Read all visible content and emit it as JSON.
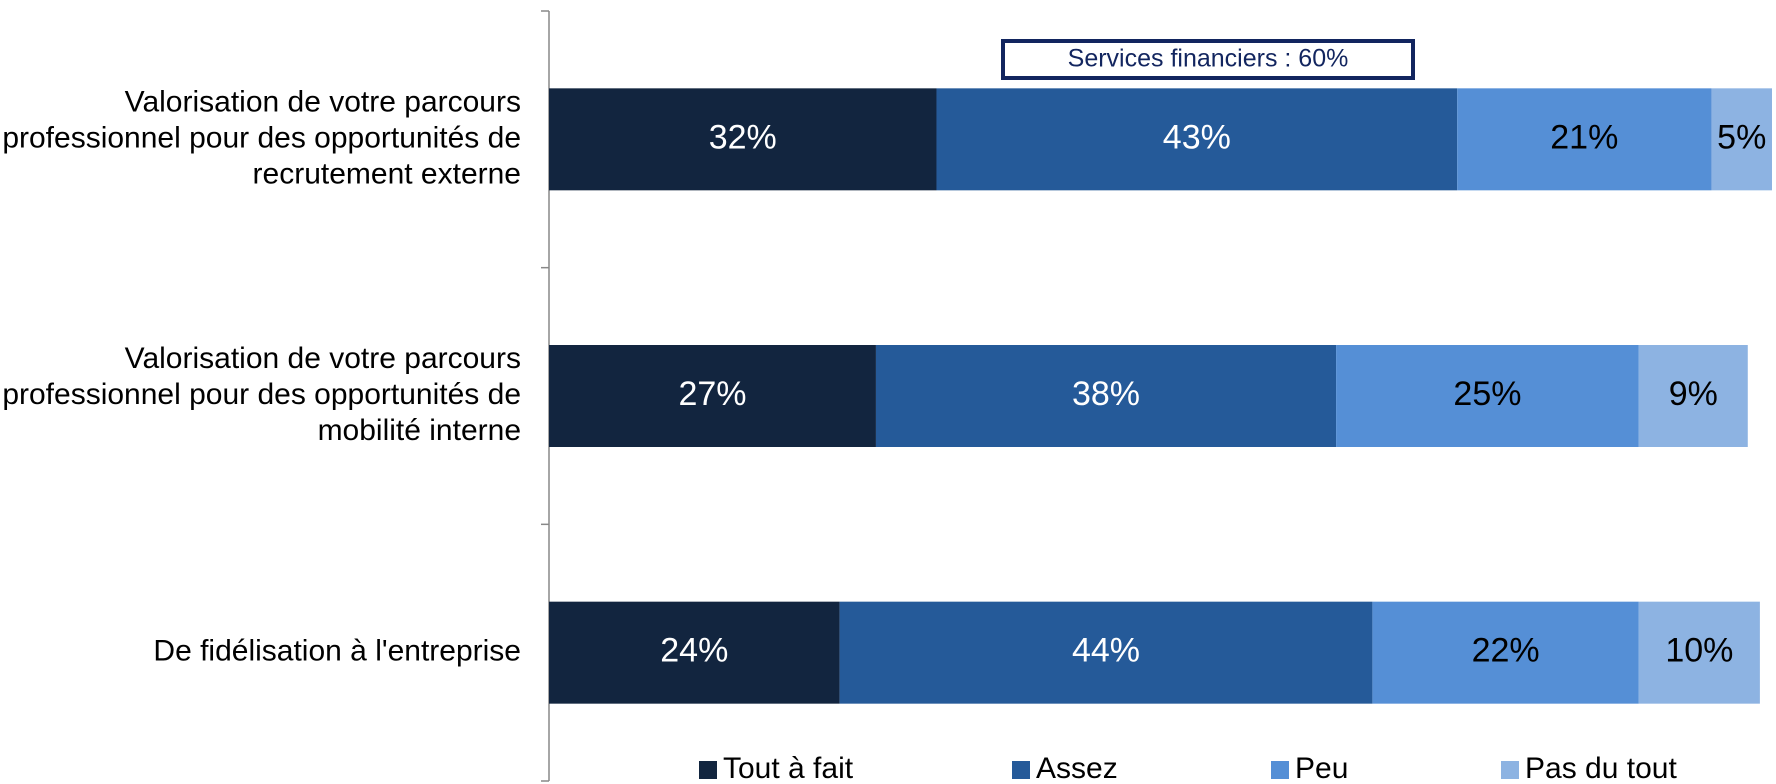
{
  "chart_data": {
    "type": "stacked-bar-horizontal",
    "categories": [
      "Valorisation de votre parcours professionnel pour des opportunités de recrutement externe",
      "Valorisation de votre parcours professionnel pour des opportunités de mobilité interne",
      "De fidélisation à l'entreprise"
    ],
    "series": [
      {
        "name": "Tout à fait",
        "color": "#12253f",
        "values": [
          32,
          27,
          24
        ],
        "value_labels": [
          "32%",
          "27%",
          "24%"
        ]
      },
      {
        "name": "Assez",
        "color": "#255a99",
        "values": [
          43,
          38,
          44
        ],
        "value_labels": [
          "43%",
          "38%",
          "44%"
        ]
      },
      {
        "name": "Peu",
        "color": "#558fd6",
        "values": [
          21,
          25,
          22
        ],
        "value_labels": [
          "21%",
          "25%",
          "22%"
        ]
      },
      {
        "name": "Pas du tout",
        "color": "#8db3e2",
        "values": [
          5,
          9,
          10
        ],
        "value_labels": [
          "5%",
          "9%",
          "10%"
        ]
      }
    ],
    "xlim": [
      0,
      101
    ],
    "annotation": "Services financiers : 60%",
    "legend": "bottom"
  }
}
